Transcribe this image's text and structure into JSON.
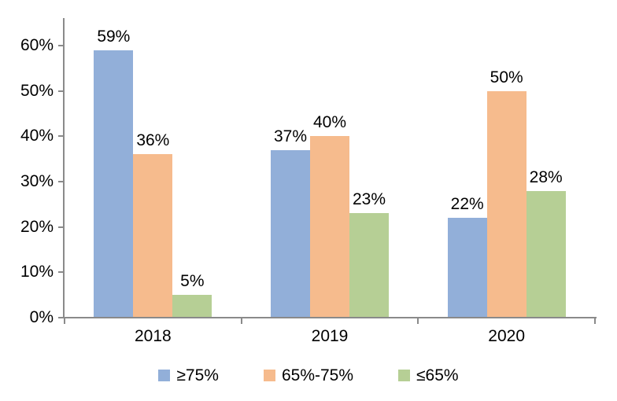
{
  "chart_data": {
    "type": "bar",
    "title": "",
    "xlabel": "",
    "ylabel": "",
    "categories": [
      "2018",
      "2019",
      "2020"
    ],
    "series": [
      {
        "name": "≥75%",
        "color": "#92AFD9",
        "values": [
          59,
          37,
          22
        ]
      },
      {
        "name": "65%-75%",
        "color": "#F6BB8D",
        "values": [
          36,
          40,
          50
        ]
      },
      {
        "name": "≤65%",
        "color": "#B6CF95",
        "values": [
          5,
          23,
          28
        ]
      }
    ],
    "value_labels_shown": true,
    "value_suffix": "%",
    "ylim": [
      0,
      60
    ],
    "y_tick_step": 10,
    "y_tick_labels": [
      "0%",
      "10%",
      "20%",
      "30%",
      "40%",
      "50%",
      "60%"
    ],
    "grid": false,
    "legend_position": "bottom",
    "axis_color": "#8A8A8A",
    "text_color": "#000000",
    "background": "#FFFFFF"
  }
}
